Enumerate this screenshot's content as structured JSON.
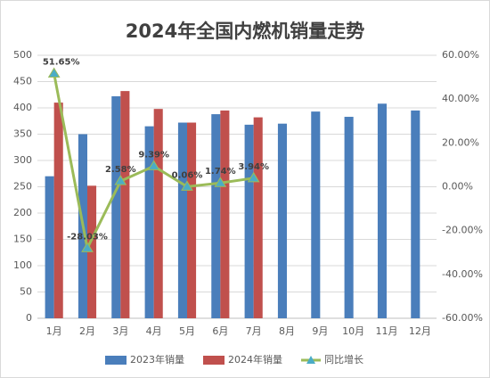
{
  "chart_data": {
    "type": "bar",
    "title": "2024年全国内燃机销量走势",
    "categories": [
      "1月",
      "2月",
      "3月",
      "4月",
      "5月",
      "6月",
      "7月",
      "8月",
      "9月",
      "10月",
      "11月",
      "12月"
    ],
    "series": [
      {
        "name": "2023年销量",
        "color": "#4a7ebb",
        "values": [
          270,
          350,
          422,
          365,
          372,
          388,
          368,
          370,
          393,
          383,
          408,
          395
        ]
      },
      {
        "name": "2024年销量",
        "color": "#c0504d",
        "values": [
          410,
          252,
          432,
          398,
          372,
          395,
          382,
          null,
          null,
          null,
          null,
          null
        ]
      },
      {
        "name": "同比增长",
        "type": "line",
        "axis": "y2",
        "color": "#9bbb59",
        "marker_color": "#4bacc6",
        "values": [
          51.65,
          -28.03,
          2.58,
          9.39,
          0.06,
          1.74,
          3.94,
          null,
          null,
          null,
          null,
          null
        ],
        "value_labels": [
          "51.65%",
          "-28.03%",
          "2.58%",
          "9.39%",
          "0.06%",
          "1.74%",
          "3.94%",
          null,
          null,
          null,
          null,
          null
        ]
      }
    ],
    "ylim": [
      0,
      500
    ],
    "yticks": [
      0,
      50,
      100,
      150,
      200,
      250,
      300,
      350,
      400,
      450,
      500
    ],
    "y2lim": [
      -60,
      60
    ],
    "y2ticks": [
      {
        "value": -60,
        "label": "-60.00%"
      },
      {
        "value": -40,
        "label": "-40.00%"
      },
      {
        "value": -20,
        "label": "-20.00%"
      },
      {
        "value": 0,
        "label": "0.00%"
      },
      {
        "value": 20,
        "label": "20.00%"
      },
      {
        "value": 40,
        "label": "40.00%"
      },
      {
        "value": 60,
        "label": "60.00%"
      }
    ],
    "grid": true
  }
}
